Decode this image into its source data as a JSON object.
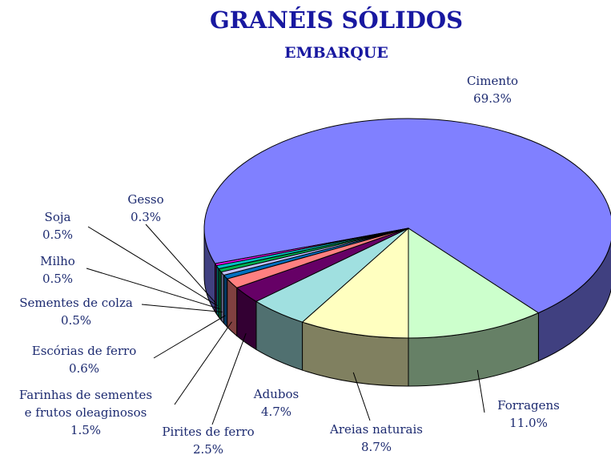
{
  "chart_data": {
    "type": "pie3d",
    "title": "GRANÉIS SÓLIDOS",
    "subtitle": "EMBARQUE",
    "categories": [
      "Cimento",
      "Forragens",
      "Areias naturais",
      "Adubos",
      "Pirites de ferro",
      "Farinhas de sementes\ne frutos oleaginosos",
      "Escórias de ferro",
      "Sementes de colza",
      "Milho",
      "Soja",
      "Gesso"
    ],
    "values": [
      69.3,
      11.0,
      8.7,
      4.7,
      2.5,
      1.5,
      0.6,
      0.5,
      0.5,
      0.5,
      0.3
    ],
    "value_labels": [
      "69.3%",
      "11.0%",
      "8.7%",
      "4.7%",
      "2.5%",
      "1.5%",
      "0.6%",
      "0.5%",
      "0.5%",
      "0.5%",
      "0.3%"
    ],
    "colors": [
      "#8080ff",
      "#ccffcc",
      "#ffffc0",
      "#a0e0e0",
      "#660066",
      "#ff8080",
      "#0070c0",
      "#c0c0ff",
      "#00b050",
      "#00c0c0",
      "#ff00ff"
    ]
  }
}
